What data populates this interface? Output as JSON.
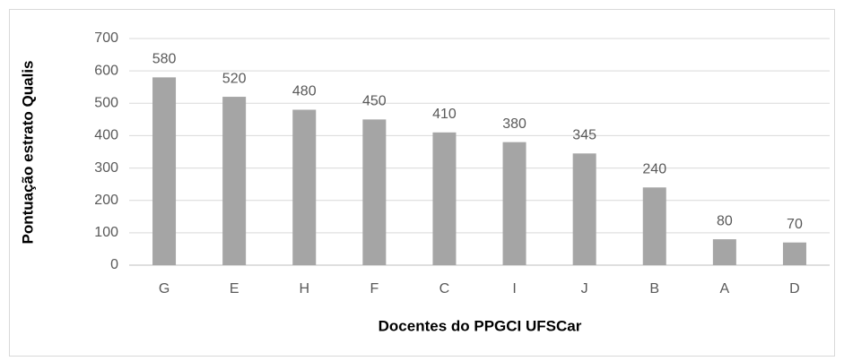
{
  "chart_data": {
    "type": "bar",
    "x_label": "Docentes do PPGCI UFSCar",
    "y_label": "Pontuação estrato Qualis",
    "categories": [
      "G",
      "E",
      "H",
      "F",
      "C",
      "I",
      "J",
      "B",
      "A",
      "D"
    ],
    "values": [
      580,
      520,
      480,
      450,
      410,
      380,
      345,
      240,
      80,
      70
    ],
    "color": "#a5a5a5",
    "ylim": [
      0,
      700
    ],
    "yticks": [
      0,
      100,
      200,
      300,
      400,
      500,
      600,
      700
    ],
    "grid": true
  }
}
